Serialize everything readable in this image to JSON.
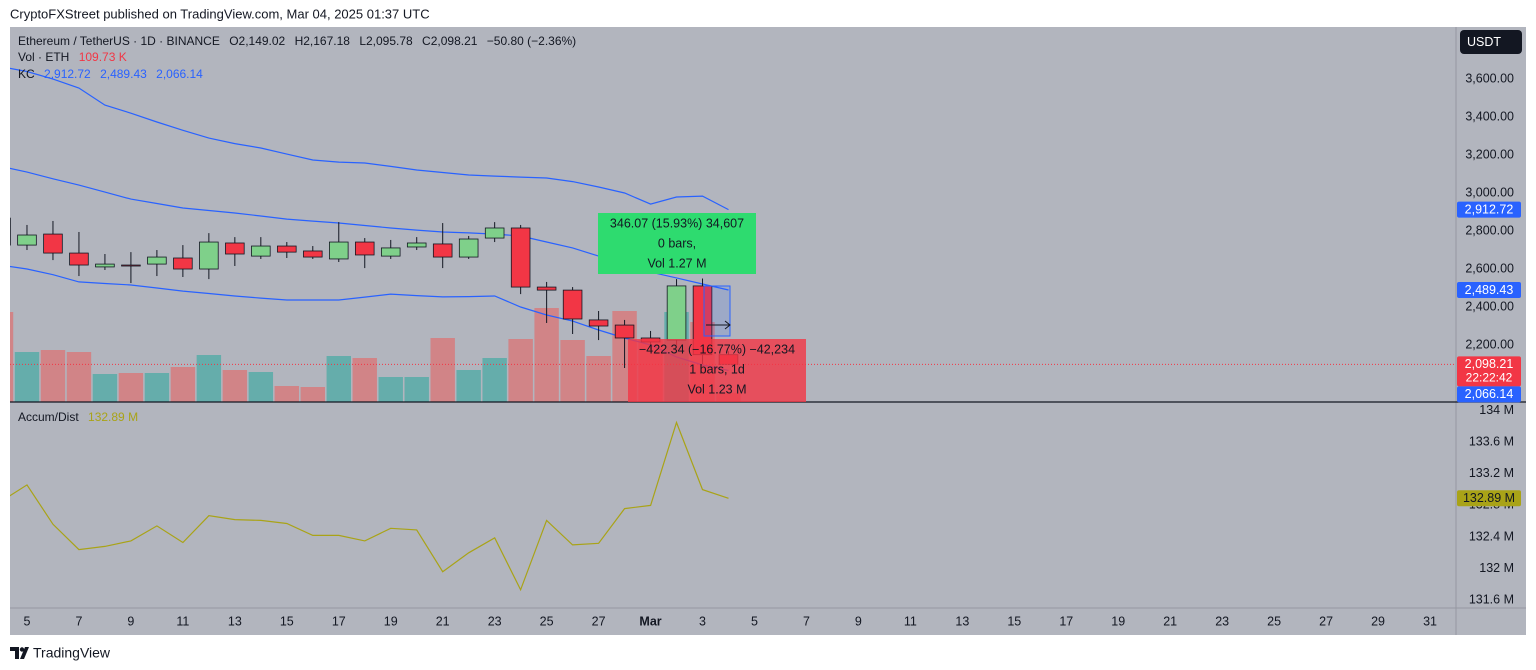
{
  "header": {
    "text": "CryptoFXStreet published on TradingView.com, Mar 04, 2025 01:37 UTC"
  },
  "footer": {
    "brand": "TradingView"
  },
  "currency": "USDT",
  "chart_data": [
    {
      "type": "candlestick",
      "title": "Ethereum / TetherUS · 1D · BINANCE",
      "ohlc_legend": [
        "O2,149.02",
        "H2,167.18",
        "L2,095.78",
        "C2,098.21",
        "−50.80 (−2.36%)"
      ],
      "x": [
        "2025-02-04",
        "2025-02-05",
        "2025-02-06",
        "2025-02-07",
        "2025-02-08",
        "2025-02-09",
        "2025-02-10",
        "2025-02-11",
        "2025-02-12",
        "2025-02-13",
        "2025-02-14",
        "2025-02-15",
        "2025-02-16",
        "2025-02-17",
        "2025-02-18",
        "2025-02-19",
        "2025-02-20",
        "2025-02-21",
        "2025-02-22",
        "2025-02-23",
        "2025-02-24",
        "2025-02-25",
        "2025-02-26",
        "2025-02-27",
        "2025-02-28",
        "2025-03-01",
        "2025-03-02",
        "2025-03-03",
        "2025-03-04"
      ],
      "open": [
        2868,
        2726,
        2784,
        2684,
        2611,
        2621,
        2626,
        2658,
        2600,
        2737,
        2668,
        2721,
        2695,
        2653,
        2742,
        2668,
        2716,
        2732,
        2663,
        2763,
        2816,
        2505,
        2489,
        2332,
        2305,
        2237,
        2226,
        2511,
        2149.02
      ],
      "high": [
        2884,
        2832,
        2853,
        2795,
        2679,
        2689,
        2700,
        2726,
        2789,
        2768,
        2768,
        2742,
        2721,
        2847,
        2763,
        2753,
        2768,
        2842,
        2774,
        2847,
        2832,
        2532,
        2505,
        2379,
        2332,
        2274,
        2547,
        2550,
        2167.18
      ],
      "low": [
        2711,
        2700,
        2647,
        2563,
        2595,
        2526,
        2563,
        2558,
        2547,
        2616,
        2653,
        2658,
        2653,
        2637,
        2605,
        2653,
        2700,
        2605,
        2653,
        2742,
        2468,
        2316,
        2258,
        2226,
        2079,
        2174,
        2200,
        2100,
        2095.78
      ],
      "close": [
        2726,
        2779,
        2684,
        2621,
        2626,
        2616,
        2663,
        2600,
        2742,
        2679,
        2721,
        2689,
        2663,
        2742,
        2674,
        2711,
        2737,
        2663,
        2758,
        2816,
        2505,
        2489,
        2337,
        2300,
        2237,
        2216,
        2511,
        2149,
        2098.21
      ],
      "up_color": "#7fd08a",
      "down_color": "#f23645",
      "volume": {
        "name": "Vol · ETH",
        "last_label": "109.73 K",
        "values": [
          1080,
          600,
          624,
          600,
          336,
          348,
          348,
          420,
          564,
          384,
          360,
          192,
          180,
          552,
          528,
          300,
          300,
          768,
          384,
          528,
          756,
          1128,
          744,
          552,
          1092,
          744,
          1080,
          960,
          109.73
        ],
        "up_color": "rgba(38,166,154,0.55)",
        "down_color": "rgba(239,83,80,0.5)"
      },
      "kc": {
        "name": "KC",
        "color": "#2962ff",
        "upper": [
          3665,
          3640,
          3600,
          3553,
          3463,
          3420,
          3374,
          3330,
          3289,
          3260,
          3237,
          3205,
          3174,
          3163,
          3158,
          3140,
          3121,
          3108,
          3095,
          3089,
          3084,
          3079,
          3060,
          3032,
          3000,
          2942,
          2979,
          2984,
          2912.72
        ],
        "basis": [
          3140,
          3110,
          3075,
          3042,
          3005,
          2968,
          2945,
          2921,
          2908,
          2895,
          2879,
          2863,
          2852,
          2842,
          2829,
          2816,
          2805,
          2795,
          2790,
          2784,
          2774,
          2742,
          2711,
          2668,
          2621,
          2584,
          2553,
          2521,
          2489.43
        ],
        "lower": [
          2620,
          2600,
          2570,
          2532,
          2524,
          2516,
          2500,
          2484,
          2471,
          2458,
          2447,
          2437,
          2437,
          2437,
          2452,
          2468,
          2460,
          2453,
          2455,
          2458,
          2400,
          2358,
          2326,
          2279,
          2237,
          2200,
          2137,
          2095,
          2066.14
        ]
      },
      "price_tags": [
        {
          "value": 2912.72,
          "label": "2,912.72",
          "color": "#2962ff"
        },
        {
          "value": 2489.43,
          "label": "2,489.43",
          "color": "#2962ff"
        },
        {
          "value": 2098.21,
          "label": "2,098.21",
          "color": "#f23645",
          "countdown": "22:22:42"
        },
        {
          "value": 2066.14,
          "label": "2,066.14",
          "color": "#2962ff"
        }
      ],
      "annotations": [
        {
          "lines": [
            "346.07 (15.93%) 34,607",
            "0 bars,",
            "Vol 1.27 M"
          ],
          "color": "#2edb6f"
        },
        {
          "lines": [
            "−422.34 (−16.77%) −42,234",
            "1 bars, 1d",
            "Vol 1.23 M"
          ],
          "color": "rgba(242,54,69,0.8)"
        }
      ],
      "ylim": [
        1900,
        3874
      ],
      "yticks": [
        {
          "value": 2200,
          "label": "2,200.00"
        },
        {
          "value": 2400,
          "label": "2,400.00"
        },
        {
          "value": 2600,
          "label": "2,600.00"
        },
        {
          "value": 2800,
          "label": "2,800.00"
        },
        {
          "value": 3000,
          "label": "3,000.00"
        },
        {
          "value": 3200,
          "label": "3,200.00"
        },
        {
          "value": 3400,
          "label": "3,400.00"
        },
        {
          "value": 3600,
          "label": "3,600.00"
        }
      ],
      "xlim": [
        "2025-02-04",
        "2025-04-01"
      ],
      "xticks": [
        {
          "value": "2025-02-05",
          "label": "5"
        },
        {
          "value": "2025-02-07",
          "label": "7"
        },
        {
          "value": "2025-02-09",
          "label": "9"
        },
        {
          "value": "2025-02-11",
          "label": "11"
        },
        {
          "value": "2025-02-13",
          "label": "13"
        },
        {
          "value": "2025-02-15",
          "label": "15"
        },
        {
          "value": "2025-02-17",
          "label": "17"
        },
        {
          "value": "2025-02-19",
          "label": "19"
        },
        {
          "value": "2025-02-21",
          "label": "21"
        },
        {
          "value": "2025-02-23",
          "label": "23"
        },
        {
          "value": "2025-02-25",
          "label": "25"
        },
        {
          "value": "2025-02-27",
          "label": "27"
        },
        {
          "value": "2025-03-01",
          "label": "Mar"
        },
        {
          "value": "2025-03-03",
          "label": "3"
        },
        {
          "value": "2025-03-05",
          "label": "5"
        },
        {
          "value": "2025-03-07",
          "label": "7"
        },
        {
          "value": "2025-03-09",
          "label": "9"
        },
        {
          "value": "2025-03-11",
          "label": "11"
        },
        {
          "value": "2025-03-13",
          "label": "13"
        },
        {
          "value": "2025-03-15",
          "label": "15"
        },
        {
          "value": "2025-03-17",
          "label": "17"
        },
        {
          "value": "2025-03-19",
          "label": "19"
        },
        {
          "value": "2025-03-21",
          "label": "21"
        },
        {
          "value": "2025-03-23",
          "label": "23"
        },
        {
          "value": "2025-03-25",
          "label": "25"
        },
        {
          "value": "2025-03-27",
          "label": "27"
        },
        {
          "value": "2025-03-29",
          "label": "29"
        },
        {
          "value": "2025-03-31",
          "label": "31"
        }
      ],
      "grid": false
    },
    {
      "type": "line",
      "title": "Accum/Dist",
      "series": [
        {
          "name": "Accum/Dist",
          "color": "#a9a317",
          "values": [
            132.85,
            133.06,
            132.56,
            132.24,
            132.28,
            132.35,
            132.54,
            132.33,
            132.67,
            132.62,
            132.61,
            132.57,
            132.42,
            132.42,
            132.35,
            132.51,
            132.49,
            131.96,
            132.2,
            132.39,
            131.73,
            132.61,
            132.3,
            132.32,
            132.76,
            132.8,
            133.85,
            133.0,
            132.89
          ],
          "last_label": "132.89 M"
        }
      ],
      "ylim": [
        131.5,
        134.11
      ],
      "yticks": [
        {
          "value": 131.6,
          "label": "131.6 M"
        },
        {
          "value": 132,
          "label": "132 M"
        },
        {
          "value": 132.4,
          "label": "132.4 M"
        },
        {
          "value": 132.8,
          "label": "132.8 M"
        },
        {
          "value": 133.2,
          "label": "133.2 M"
        },
        {
          "value": 133.6,
          "label": "133.6 M"
        },
        {
          "value": 134,
          "label": "134 M"
        }
      ],
      "grid": false
    }
  ]
}
